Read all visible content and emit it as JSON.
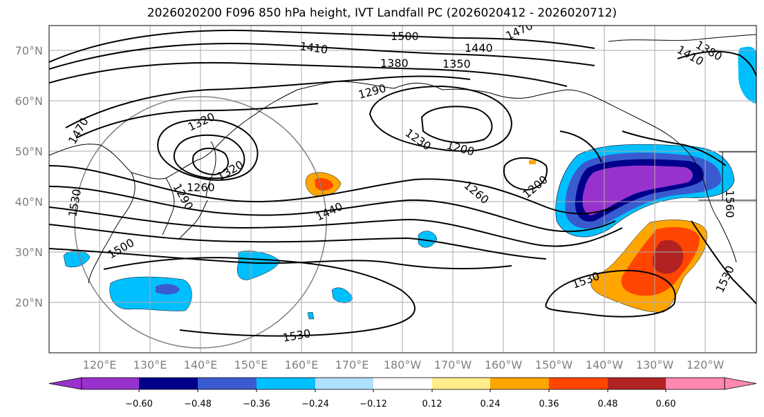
{
  "title": "2026020200 F096 850 hPa height, IVT Landfall PC (2026020412 - 2026020712)",
  "lat_labels": [
    "70°N",
    "60°N",
    "50°N",
    "40°N",
    "30°N",
    "20°N"
  ],
  "lon_labels": [
    "120°E",
    "130°E",
    "140°E",
    "150°E",
    "160°E",
    "170°E",
    "180°W",
    "170°W",
    "160°W",
    "150°W",
    "140°W",
    "130°W",
    "120°W"
  ],
  "contour_labels": [
    "1500",
    "1470",
    "1410",
    "1440",
    "1380",
    "1350",
    "1290",
    "1320",
    "1230",
    "1200",
    "1260",
    "1200",
    "1470",
    "1530",
    "1500",
    "1290",
    "1320",
    "1260",
    "1440",
    "1530",
    "1530",
    "1530",
    "1560",
    "1380",
    "1410"
  ],
  "colorbar": {
    "ticks": [
      "−0.60",
      "−0.48",
      "−0.36",
      "−0.24",
      "−0.12",
      "0.12",
      "0.24",
      "0.36",
      "0.48",
      "0.60"
    ],
    "colors": [
      "#9932cc",
      "#00008b",
      "#3a5bd0",
      "#00bfff",
      "#b0e0ff",
      "#ffffff",
      "#ffec8b",
      "#ffa500",
      "#ff4500",
      "#b22222",
      "#ff88b0"
    ]
  },
  "colors": {
    "purple": "#9932cc",
    "navy": "#00008b",
    "blue": "#3a5bd0",
    "cyan": "#00bfff",
    "lightblue": "#b0e0ff",
    "yellow": "#ffec8b",
    "orange": "#ffa500",
    "redorange": "#ff4500",
    "firebrick": "#b22222",
    "pink": "#ff88b0"
  }
}
